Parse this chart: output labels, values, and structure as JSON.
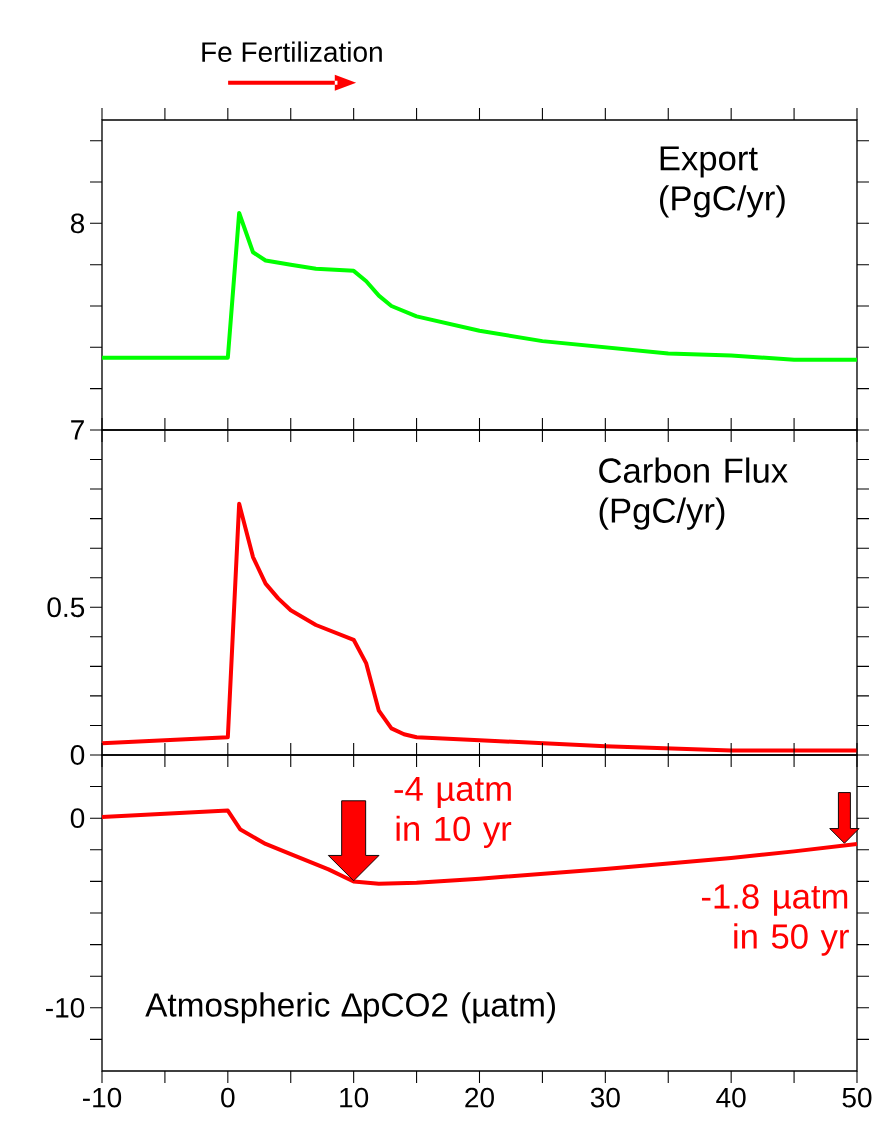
{
  "chart_data": [
    {
      "type": "line",
      "title": "Fe Fertilization",
      "ylabel": "Export (PgC/yr)",
      "color": "#00ff00",
      "line_style": "solid",
      "x": [
        -10,
        0,
        0.9,
        2,
        3,
        5,
        7,
        10,
        11,
        12,
        13,
        15,
        20,
        25,
        30,
        35,
        40,
        45,
        50
      ],
      "values": [
        7.35,
        7.35,
        8.05,
        7.86,
        7.82,
        7.8,
        7.78,
        7.77,
        7.72,
        7.65,
        7.6,
        7.55,
        7.48,
        7.43,
        7.4,
        7.37,
        7.36,
        7.34,
        7.34
      ],
      "xlim": [
        -10,
        50
      ],
      "ylim": [
        7,
        8.5
      ],
      "tick_labels": "y",
      "xticks": [
        {
          "value": -10,
          "label": null
        },
        {
          "value": -5,
          "label": null
        },
        {
          "value": 0,
          "label": null
        },
        {
          "value": 5,
          "label": null
        },
        {
          "value": 10,
          "label": null
        },
        {
          "value": 15,
          "label": null
        },
        {
          "value": 20,
          "label": null
        },
        {
          "value": 25,
          "label": null
        },
        {
          "value": 30,
          "label": null
        },
        {
          "value": 35,
          "label": null
        },
        {
          "value": 40,
          "label": null
        },
        {
          "value": 45,
          "label": null
        },
        {
          "value": 50,
          "label": null
        }
      ],
      "yticks": [
        7,
        {
          "value": 7.2,
          "label": null
        },
        {
          "value": 7.4,
          "label": null
        },
        {
          "value": 7.6,
          "label": null
        },
        {
          "value": 7.8,
          "label": null
        },
        8,
        {
          "value": 8.2,
          "label": null
        },
        {
          "value": 8.4,
          "label": null
        }
      ]
    },
    {
      "type": "line",
      "ylabel": "Carbon Flux (PgC/yr)",
      "color": "#ff0000",
      "line_style": "solid",
      "x": [
        -10,
        0,
        0.9,
        2,
        3,
        4,
        5,
        7,
        10,
        11,
        12,
        13,
        14,
        15,
        20,
        30,
        40,
        50
      ],
      "values": [
        0.04,
        0.06,
        0.85,
        0.67,
        0.58,
        0.53,
        0.49,
        0.44,
        0.39,
        0.31,
        0.15,
        0.09,
        0.07,
        0.06,
        0.05,
        0.03,
        0.015,
        0.015
      ],
      "xlim": [
        -10,
        50
      ],
      "ylim": [
        0,
        1.1
      ],
      "tick_labels": "y",
      "xticks": [
        {
          "value": -10,
          "label": null
        },
        {
          "value": -5,
          "label": null
        },
        {
          "value": 0,
          "label": null
        },
        {
          "value": 5,
          "label": null
        },
        {
          "value": 10,
          "label": null
        },
        {
          "value": 15,
          "label": null
        },
        {
          "value": 20,
          "label": null
        },
        {
          "value": 25,
          "label": null
        },
        {
          "value": 30,
          "label": null
        },
        {
          "value": 35,
          "label": null
        },
        {
          "value": 40,
          "label": null
        },
        {
          "value": 45,
          "label": null
        },
        {
          "value": 50,
          "label": null
        }
      ],
      "yticks": [
        0,
        {
          "value": 0.1,
          "label": null
        },
        {
          "value": 0.2,
          "label": null
        },
        {
          "value": 0.3,
          "label": null
        },
        {
          "value": 0.4,
          "label": null
        },
        0.5,
        {
          "value": 0.6,
          "label": null
        },
        {
          "value": 0.7,
          "label": null
        },
        {
          "value": 0.8,
          "label": null
        },
        {
          "value": 0.9,
          "label": null
        },
        {
          "value": 1.0,
          "label": null
        }
      ]
    },
    {
      "type": "line",
      "ylabel": "Atmospheric ∆pCO2 (µatm)",
      "color": "#ff0000",
      "line_style": "solid",
      "x": [
        -10,
        0,
        1,
        3,
        5,
        8,
        10,
        12,
        15,
        20,
        30,
        40,
        45,
        50
      ],
      "values": [
        0.06,
        0.4,
        -0.6,
        -1.36,
        -1.9,
        -2.7,
        -3.34,
        -3.46,
        -3.4,
        -3.19,
        -2.68,
        -2.1,
        -1.75,
        -1.36
      ],
      "xlim": [
        -10,
        50
      ],
      "ylim": [
        -13.333,
        3.333
      ],
      "xticks": [
        -10,
        {
          "value": -5,
          "label": null
        },
        0,
        {
          "value": 5,
          "label": null
        },
        10,
        {
          "value": 15,
          "label": null
        },
        20,
        {
          "value": 25,
          "label": null
        },
        30,
        {
          "value": 35,
          "label": null
        },
        40,
        {
          "value": 45,
          "label": null
        },
        50
      ],
      "yticks": [
        {
          "value": 1.667,
          "label": null
        },
        0,
        {
          "value": -1.667,
          "label": null
        },
        {
          "value": -3.333,
          "label": null
        },
        {
          "value": -5,
          "label": null
        },
        {
          "value": -6.667,
          "label": null
        },
        {
          "value": -8.333,
          "label": null
        },
        -10,
        {
          "value": -11.667,
          "label": null
        }
      ],
      "annotations": [
        {
          "text": "-4 µatm in 10 yr",
          "x": 10,
          "y": -3.34
        },
        {
          "text": "-1.8 µatm in 50 yr",
          "x": 49,
          "y": -1.36
        }
      ]
    }
  ]
}
